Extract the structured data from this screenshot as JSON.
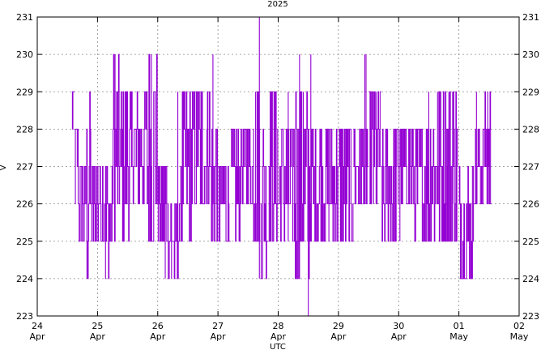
{
  "chart_data": {
    "type": "line",
    "title": "2025",
    "xlabel": "UTC",
    "ylabel": "V",
    "ylim": [
      223,
      231
    ],
    "yticks": [
      223,
      224,
      225,
      226,
      227,
      228,
      229,
      230,
      231
    ],
    "y2ticks": [
      223,
      224,
      225,
      226,
      227,
      228,
      229,
      230,
      231
    ],
    "xlim": [
      "2025-04-24",
      "2025-05-02"
    ],
    "xticks": [
      {
        "date": "2025-04-24",
        "day": "24",
        "month": "Apr"
      },
      {
        "date": "2025-04-25",
        "day": "25",
        "month": "Apr"
      },
      {
        "date": "2025-04-26",
        "day": "26",
        "month": "Apr"
      },
      {
        "date": "2025-04-27",
        "day": "27",
        "month": "Apr"
      },
      {
        "date": "2025-04-28",
        "day": "28",
        "month": "Apr"
      },
      {
        "date": "2025-04-29",
        "day": "29",
        "month": "Apr"
      },
      {
        "date": "2025-04-30",
        "day": "30",
        "month": "Apr"
      },
      {
        "date": "2025-05-01",
        "day": "01",
        "month": "May"
      },
      {
        "date": "2025-05-02",
        "day": "02",
        "month": "May"
      }
    ],
    "grid": true,
    "color": "#9400d3",
    "series": [
      {
        "data_ranges": [
          {
            "date": "2025-04-24",
            "hours": [
              13.8,
              15.0
            ],
            "min": 228,
            "max": 229
          },
          {
            "date": "2025-04-24",
            "hours": [
              15.0,
              16.5
            ],
            "min": 226,
            "max": 228
          },
          {
            "date": "2025-04-24",
            "hours": [
              16.5,
              19.5
            ],
            "min": 225,
            "max": 227
          },
          {
            "date": "2025-04-24",
            "hours": [
              19.5,
              21.5
            ],
            "min": 224,
            "max": 229
          },
          {
            "date": "2025-04-24",
            "hours": [
              21.5,
              24.0
            ],
            "min": 225,
            "max": 227
          },
          {
            "date": "2025-04-25",
            "hours": [
              0.0,
              3.0
            ],
            "min": 225,
            "max": 227
          },
          {
            "date": "2025-04-25",
            "hours": [
              3.0,
              6.0
            ],
            "min": 224,
            "max": 227
          },
          {
            "date": "2025-04-25",
            "hours": [
              6.0,
              9.0
            ],
            "min": 225,
            "max": 230
          },
          {
            "date": "2025-04-25",
            "hours": [
              9.0,
              14.0
            ],
            "min": 225,
            "max": 229
          },
          {
            "date": "2025-04-25",
            "hours": [
              14.0,
              19.0
            ],
            "min": 226,
            "max": 229
          },
          {
            "date": "2025-04-25",
            "hours": [
              19.0,
              24.0
            ],
            "min": 225,
            "max": 230
          },
          {
            "date": "2025-04-26",
            "hours": [
              0.0,
              4.0
            ],
            "min": 225,
            "max": 227
          },
          {
            "date": "2025-04-26",
            "hours": [
              4.0,
              9.0
            ],
            "min": 224,
            "max": 226
          },
          {
            "date": "2025-04-26",
            "hours": [
              9.0,
              14.0
            ],
            "min": 225,
            "max": 229
          },
          {
            "date": "2025-04-26",
            "hours": [
              14.0,
              21.0
            ],
            "min": 226,
            "max": 229
          },
          {
            "date": "2025-04-26",
            "hours": [
              21.0,
              24.0
            ],
            "min": 225,
            "max": 228
          },
          {
            "date": "2025-04-27",
            "hours": [
              0.0,
              5.0
            ],
            "min": 225,
            "max": 227
          },
          {
            "date": "2025-04-27",
            "hours": [
              5.0,
              9.0
            ],
            "min": 225,
            "max": 228
          },
          {
            "date": "2025-04-27",
            "hours": [
              9.0,
              14.0
            ],
            "min": 226,
            "max": 228
          },
          {
            "date": "2025-04-27",
            "hours": [
              14.0,
              17.0
            ],
            "min": 225,
            "max": 229
          },
          {
            "date": "2025-04-27",
            "hours": [
              17.0,
              20.0
            ],
            "min": 224,
            "max": 228
          },
          {
            "date": "2025-04-27",
            "hours": [
              20.0,
              24.0
            ],
            "min": 225,
            "max": 229
          },
          {
            "date": "2025-04-28",
            "hours": [
              0.0,
              6.0
            ],
            "min": 225,
            "max": 228
          },
          {
            "date": "2025-04-28",
            "hours": [
              6.0,
              13.0
            ],
            "min": 224,
            "max": 229
          },
          {
            "date": "2025-04-28",
            "hours": [
              13.0,
              20.0
            ],
            "min": 225,
            "max": 228
          },
          {
            "date": "2025-04-28",
            "hours": [
              20.0,
              24.0
            ],
            "min": 225,
            "max": 228
          },
          {
            "date": "2025-04-29",
            "hours": [
              0.0,
              6.0
            ],
            "min": 225,
            "max": 228
          },
          {
            "date": "2025-04-29",
            "hours": [
              6.0,
              12.0
            ],
            "min": 226,
            "max": 228
          },
          {
            "date": "2025-04-29",
            "hours": [
              12.0,
              17.0
            ],
            "min": 226,
            "max": 229
          },
          {
            "date": "2025-04-29",
            "hours": [
              17.0,
              24.0
            ],
            "min": 225,
            "max": 228
          },
          {
            "date": "2025-04-30",
            "hours": [
              0.0,
              6.0
            ],
            "min": 226,
            "max": 228
          },
          {
            "date": "2025-04-30",
            "hours": [
              6.0,
              12.0
            ],
            "min": 225,
            "max": 228
          },
          {
            "date": "2025-04-30",
            "hours": [
              12.0,
              17.0
            ],
            "min": 225,
            "max": 229
          },
          {
            "date": "2025-04-30",
            "hours": [
              17.0,
              24.0
            ],
            "min": 225,
            "max": 229
          },
          {
            "date": "2025-05-01",
            "hours": [
              0.0,
              6.0
            ],
            "min": 224,
            "max": 227
          },
          {
            "date": "2025-05-01",
            "hours": [
              6.0,
              10.0
            ],
            "min": 226,
            "max": 228
          },
          {
            "date": "2025-05-01",
            "hours": [
              10.0,
              13.0
            ],
            "min": 226,
            "max": 229
          }
        ],
        "spikes": [
          {
            "date": "2025-04-24",
            "hour": 19.8,
            "min": 224,
            "max": 226
          },
          {
            "date": "2025-04-25",
            "hour": 7.0,
            "min": 225,
            "max": 230
          },
          {
            "date": "2025-04-25",
            "hour": 20.5,
            "min": 225,
            "max": 230
          },
          {
            "date": "2025-04-25",
            "hour": 21.5,
            "min": 225,
            "max": 230
          },
          {
            "date": "2025-04-26",
            "hour": 3.0,
            "min": 224,
            "max": 226
          },
          {
            "date": "2025-04-26",
            "hour": 5.5,
            "min": 224,
            "max": 226
          },
          {
            "date": "2025-04-26",
            "hour": 8.0,
            "min": 224,
            "max": 229
          },
          {
            "date": "2025-04-26",
            "hour": 10.0,
            "min": 226,
            "max": 229
          },
          {
            "date": "2025-04-26",
            "hour": 16.0,
            "min": 227,
            "max": 229
          },
          {
            "date": "2025-04-26",
            "hour": 17.5,
            "min": 226,
            "max": 229
          },
          {
            "date": "2025-04-26",
            "hour": 22.0,
            "min": 225,
            "max": 230
          },
          {
            "date": "2025-04-27",
            "hour": 4.0,
            "min": 225,
            "max": 227
          },
          {
            "date": "2025-04-27",
            "hour": 15.0,
            "min": 225,
            "max": 229
          },
          {
            "date": "2025-04-27",
            "hour": 16.0,
            "min": 226,
            "max": 229
          },
          {
            "date": "2025-04-27",
            "hour": 16.5,
            "min": 224,
            "max": 231
          },
          {
            "date": "2025-04-27",
            "hour": 21.0,
            "min": 225,
            "max": 229
          },
          {
            "date": "2025-04-28",
            "hour": 4.0,
            "min": 225,
            "max": 229
          },
          {
            "date": "2025-04-28",
            "hour": 8.5,
            "min": 224,
            "max": 230
          },
          {
            "date": "2025-04-28",
            "hour": 10.0,
            "min": 225,
            "max": 229
          },
          {
            "date": "2025-04-28",
            "hour": 12.0,
            "min": 223,
            "max": 228
          },
          {
            "date": "2025-04-28",
            "hour": 13.0,
            "min": 225,
            "max": 230
          },
          {
            "date": "2025-04-28",
            "hour": 15.0,
            "min": 225,
            "max": 228
          },
          {
            "date": "2025-04-29",
            "hour": 10.5,
            "min": 226,
            "max": 230
          },
          {
            "date": "2025-04-29",
            "hour": 11.0,
            "min": 226,
            "max": 230
          },
          {
            "date": "2025-04-29",
            "hour": 14.0,
            "min": 226,
            "max": 229
          },
          {
            "date": "2025-04-29",
            "hour": 15.0,
            "min": 226,
            "max": 229
          },
          {
            "date": "2025-04-30",
            "hour": 0.5,
            "min": 225,
            "max": 228
          },
          {
            "date": "2025-04-30",
            "hour": 12.0,
            "min": 226,
            "max": 229
          },
          {
            "date": "2025-04-30",
            "hour": 15.5,
            "min": 226,
            "max": 229
          },
          {
            "date": "2025-04-30",
            "hour": 20.0,
            "min": 225,
            "max": 229
          },
          {
            "date": "2025-04-30",
            "hour": 21.5,
            "min": 226,
            "max": 229
          },
          {
            "date": "2025-05-01",
            "hour": 7.0,
            "min": 226,
            "max": 229
          },
          {
            "date": "2025-05-01",
            "hour": 11.5,
            "min": 226,
            "max": 229
          }
        ]
      }
    ]
  }
}
